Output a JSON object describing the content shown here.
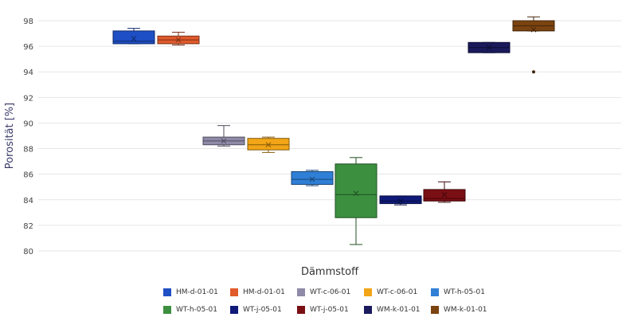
{
  "chart_data": {
    "type": "box",
    "title": "",
    "xlabel": "Dämmstoff",
    "ylabel": "Porosität [%]",
    "ylim": [
      80,
      98
    ],
    "yticks": [
      80,
      82,
      84,
      86,
      88,
      90,
      92,
      94,
      96,
      98
    ],
    "grid": true,
    "legend_position": "bottom",
    "series": [
      {
        "name": "HM-d-01-01",
        "color": "#1f4fc4",
        "min": 96.2,
        "q1": 96.2,
        "median": 96.4,
        "q3": 97.2,
        "max": 97.4,
        "mean": 96.6,
        "outliers": []
      },
      {
        "name": "HM-d-01-01",
        "color": "#e05a2b",
        "min": 96.1,
        "q1": 96.2,
        "median": 96.5,
        "q3": 96.8,
        "max": 97.1,
        "mean": 96.5,
        "outliers": []
      },
      {
        "name": "WT-c-06-01",
        "color": "#8f8aa8",
        "min": 88.2,
        "q1": 88.3,
        "median": 88.6,
        "q3": 88.9,
        "max": 89.8,
        "mean": 88.6,
        "outliers": []
      },
      {
        "name": "WT-c-06-01",
        "color": "#f2a516",
        "min": 87.7,
        "q1": 87.9,
        "median": 88.3,
        "q3": 88.8,
        "max": 88.9,
        "mean": 88.3,
        "outliers": []
      },
      {
        "name": "WT-h-05-01",
        "color": "#2f7fd6",
        "min": 85.1,
        "q1": 85.2,
        "median": 85.6,
        "q3": 86.2,
        "max": 86.3,
        "mean": 85.6,
        "outliers": []
      },
      {
        "name": "WT-h-05-01",
        "color": "#3c8f3f",
        "min": 80.5,
        "q1": 82.6,
        "median": 84.4,
        "q3": 86.8,
        "max": 87.3,
        "mean": 84.5,
        "outliers": []
      },
      {
        "name": "WT-j-05-01",
        "color": "#0f1a78",
        "min": 83.6,
        "q1": 83.7,
        "median": 83.9,
        "q3": 84.3,
        "max": 84.3,
        "mean": 83.9,
        "outliers": []
      },
      {
        "name": "WT-j-05-01",
        "color": "#7a0f14",
        "min": 83.8,
        "q1": 83.9,
        "median": 84.1,
        "q3": 84.8,
        "max": 85.4,
        "mean": 84.4,
        "outliers": []
      },
      {
        "name": "WM-k-01-01",
        "color": "#1a1a5c",
        "min": 95.5,
        "q1": 95.5,
        "median": 95.9,
        "q3": 96.3,
        "max": 96.3,
        "mean": 95.9,
        "outliers": []
      },
      {
        "name": "WM-k-01-01",
        "color": "#7a4310",
        "min": 97.2,
        "q1": 97.2,
        "median": 97.6,
        "q3": 98.0,
        "max": 98.3,
        "mean": 97.3,
        "outliers": [
          94.0
        ]
      }
    ]
  }
}
